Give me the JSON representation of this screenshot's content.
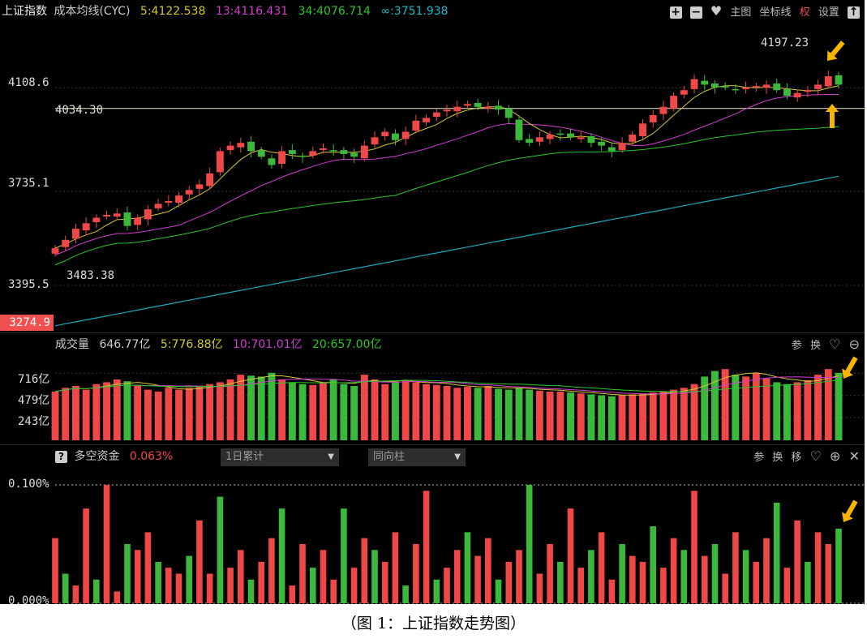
{
  "header": {
    "index_name": "上证指数",
    "indicator": "成本均线(CYC)",
    "ma5": "5:4122.538",
    "ma13": "13:4116.431",
    "ma34": "34:4076.714",
    "ma_inf": "∞:3751.938",
    "btn_plus": "+",
    "btn_minus": "−",
    "btn_heart": "♥",
    "main_chart": "主图",
    "coord_line": "坐标线",
    "rights": "权",
    "settings": "设置",
    "btn_top": "↑"
  },
  "price_axis": {
    "tick_4108": "4108.6",
    "tick_3735": "3735.1",
    "tick_3395": "3395.5",
    "current": "3274.9",
    "hline_label": "4034.30",
    "high_label": "4197.23",
    "low_label": "3483.38"
  },
  "volume_panel": {
    "title": "成交量",
    "total": "646.77亿",
    "ma5": "5:776.88亿",
    "ma10": "10:701.01亿",
    "ma20": "20:657.00亿",
    "tick_716": "716亿",
    "tick_479": "479亿",
    "tick_243": "243亿",
    "btn_param": "参",
    "btn_switch": "换",
    "btn_fav": "♡",
    "btn_zoom_out": "⊖"
  },
  "fund_panel": {
    "help": "?",
    "title": "多空资金",
    "value": "0.063%",
    "select1": "1日累计",
    "select2": "同向柱",
    "tick_top": "0.100%",
    "tick_bottom": "0.000%",
    "btn_param": "参",
    "btn_switch": "换",
    "btn_move": "移",
    "btn_fav": "♡",
    "btn_zoom_in": "⊕",
    "btn_close": "✕"
  },
  "caption": "（图 1：上证指数走势图）",
  "colors": {
    "up": "#f04848",
    "down": "#3cb83c",
    "ma5": "#d4c832",
    "ma13": "#d23cd2",
    "ma34": "#28c828",
    "ma_inf": "#1aa8b8",
    "axis_text": "#dddddd",
    "highlight": "#f7b500"
  },
  "chart_data": {
    "type": "candlestick+bar",
    "price_axis_ticks": [
      4108.6,
      3735.1,
      3395.5
    ],
    "current_price": 3274.9,
    "horizontal_line": 4034.3,
    "period_high": 4197.23,
    "period_low": 3483.38,
    "close_path": [
      3530,
      3560,
      3600,
      3620,
      3640,
      3650,
      3655,
      3610,
      3640,
      3670,
      3690,
      3700,
      3720,
      3740,
      3760,
      3800,
      3880,
      3900,
      3910,
      3880,
      3860,
      3830,
      3880,
      3870,
      3860,
      3880,
      3890,
      3880,
      3870,
      3860,
      3900,
      3930,
      3950,
      3920,
      3950,
      3990,
      4000,
      4020,
      4030,
      4040,
      4050,
      4040,
      4040,
      4030,
      4000,
      3920,
      3910,
      3930,
      3940,
      3940,
      3930,
      3930,
      3910,
      3900,
      3880,
      3910,
      3940,
      3980,
      4010,
      4040,
      4080,
      4100,
      4140,
      4120,
      4110,
      4110,
      4100,
      4110,
      4115,
      4120,
      4100,
      4080,
      4090,
      4100,
      4120,
      4150,
      4120
    ],
    "volume_ma_ticks": [
      716,
      479,
      243
    ],
    "volume_pattern": [
      520,
      560,
      580,
      540,
      600,
      620,
      650,
      630,
      590,
      540,
      520,
      560,
      540,
      560,
      580,
      600,
      620,
      650,
      700,
      690,
      680,
      720,
      650,
      620,
      600,
      590,
      620,
      650,
      600,
      580,
      700,
      650,
      600,
      620,
      640,
      620,
      600,
      590,
      580,
      560,
      570,
      560,
      580,
      550,
      540,
      560,
      540,
      530,
      520,
      520,
      510,
      500,
      490,
      480,
      470,
      480,
      490,
      500,
      510,
      520,
      540,
      560,
      600,
      680,
      740,
      760,
      700,
      680,
      720,
      660,
      620,
      600,
      620,
      640,
      700,
      760,
      720
    ],
    "fund_ticks": [
      0.1,
      0.0
    ],
    "fund_pattern": [
      0.055,
      0.025,
      0.015,
      0.08,
      0.02,
      0.1,
      0.01,
      0.05,
      0.045,
      0.06,
      0.035,
      0.03,
      0.025,
      0.04,
      0.07,
      0.025,
      0.09,
      0.03,
      0.045,
      0.02,
      0.035,
      0.055,
      0.08,
      0.015,
      0.05,
      0.03,
      0.045,
      0.02,
      0.08,
      0.03,
      0.055,
      0.045,
      0.035,
      0.06,
      0.015,
      0.05,
      0.095,
      0.02,
      0.03,
      0.045,
      0.06,
      0.04,
      0.055,
      0.02,
      0.035,
      0.045,
      0.1,
      0.025,
      0.05,
      0.035,
      0.08,
      0.03,
      0.045,
      0.06,
      0.02,
      0.05,
      0.04,
      0.035,
      0.065,
      0.03,
      0.055,
      0.045,
      0.095,
      0.04,
      0.05,
      0.025,
      0.06,
      0.045,
      0.035,
      0.055,
      0.085,
      0.03,
      0.07,
      0.035,
      0.06,
      0.05,
      0.063
    ]
  }
}
